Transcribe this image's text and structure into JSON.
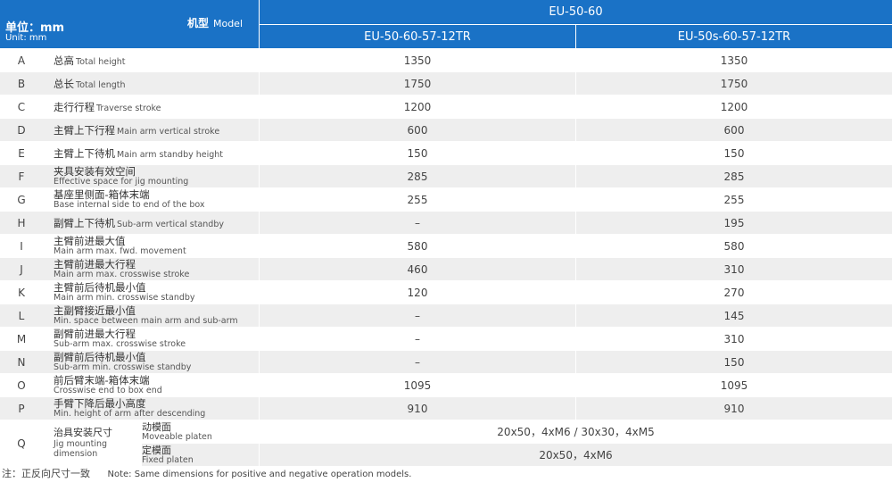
{
  "header": {
    "unit_cn": "单位：mm",
    "unit_en": "Unit: mm",
    "model_cn": "机型",
    "model_en": "Model",
    "series": "EU-50-60",
    "models": [
      "EU-50-60-57-12TR",
      "EU-50s-60-57-12TR"
    ]
  },
  "rows": [
    {
      "code": "A",
      "cn": "总高",
      "en": "Total height",
      "v1": "1350",
      "v2": "1350"
    },
    {
      "code": "B",
      "cn": "总长",
      "en": "Total length",
      "v1": "1750",
      "v2": "1750"
    },
    {
      "code": "C",
      "cn": "走行行程",
      "en": "Traverse stroke",
      "v1": "1200",
      "v2": "1200"
    },
    {
      "code": "D",
      "cn": "主臂上下行程",
      "en": "Main arm vertical stroke",
      "v1": "600",
      "v2": "600"
    },
    {
      "code": "E",
      "cn": "主臂上下待机",
      "en": "Main arm standby height",
      "v1": "150",
      "v2": "150"
    },
    {
      "code": "F",
      "cn": "夹具安装有效空间",
      "en": "Effective space for jig mounting",
      "v1": "285",
      "v2": "285"
    },
    {
      "code": "G",
      "cn": "基座里侧面-箱体末端",
      "en": "Base internal side to end of the box",
      "v1": "255",
      "v2": "255"
    },
    {
      "code": "H",
      "cn": "副臂上下待机",
      "en": "Sub-arm vertical standby",
      "v1": "–",
      "v2": "195"
    },
    {
      "code": "I",
      "cn": "主臂前进最大值",
      "en": "Main arm max. fwd. movement",
      "v1": "580",
      "v2": "580"
    },
    {
      "code": "J",
      "cn": "主臂前进最大行程",
      "en": "Main arm max. crosswise stroke",
      "v1": "460",
      "v2": "310"
    },
    {
      "code": "K",
      "cn": "主臂前后待机最小值",
      "en": "Main arm min. crosswise standby",
      "v1": "120",
      "v2": "270"
    },
    {
      "code": "L",
      "cn": "主副臂接近最小值",
      "en": "Min. space between main arm and sub-arm",
      "v1": "–",
      "v2": "145"
    },
    {
      "code": "M",
      "cn": "副臂前进最大行程",
      "en": "Sub-arm max. crosswise stroke",
      "v1": "–",
      "v2": "310"
    },
    {
      "code": "N",
      "cn": "副臂前后待机最小值",
      "en": "Sub-arm min. crosswise standby",
      "v1": "–",
      "v2": "150"
    },
    {
      "code": "O",
      "cn": "前后臂末端-箱体末端",
      "en": "Crosswise end to box end",
      "v1": "1095",
      "v2": "1095"
    },
    {
      "code": "P",
      "cn": "手臂下降后最小高度",
      "en": "Min. height of arm after descending",
      "v1": "910",
      "v2": "910"
    }
  ],
  "jig": {
    "code": "Q",
    "cn": "治具安装尺寸",
    "en": "Jig mounting dimension",
    "moveable_cn": "动模面",
    "moveable_en": "Moveable platen",
    "moveable_value": "20x50，4xM6 / 30x30，4xM5",
    "fixed_cn": "定模面",
    "fixed_en": "Fixed platen",
    "fixed_value": "20x50，4xM6"
  },
  "note": {
    "cn": "注：正反向尺寸一致",
    "en": "Note: Same dimensions for positive and negative operation models."
  },
  "stacked_rows": [
    "F",
    "G",
    "I",
    "J",
    "K",
    "L",
    "M",
    "N",
    "O",
    "P"
  ],
  "colors": {
    "header_blue": "#1a72c6",
    "stripe_gray": "#eeeeee"
  }
}
